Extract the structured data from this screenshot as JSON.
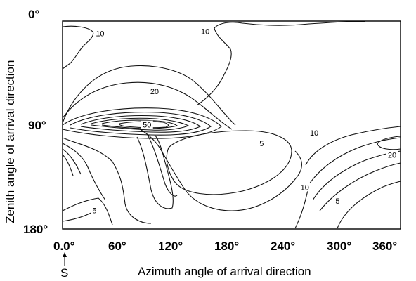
{
  "chart_data": {
    "type": "contour",
    "xlabel": "Azimuth angle of arrival direction",
    "ylabel": "Zenith angle of arrival direction",
    "xlim": [
      0,
      360
    ],
    "ylim": [
      0,
      180
    ],
    "x_ticks": [
      "0.0°",
      "60°",
      "120°",
      "180°",
      "240°",
      "300°",
      "360°"
    ],
    "y_ticks": [
      "0°",
      "90°",
      "180°"
    ],
    "x_marker": {
      "x": 0,
      "label": "S"
    },
    "contour_labels": [
      {
        "text": "10",
        "x": 40,
        "y": 12
      },
      {
        "text": "10",
        "x": 152,
        "y": 10
      },
      {
        "text": "20",
        "x": 98,
        "y": 62
      },
      {
        "text": "50",
        "x": 90,
        "y": 91
      },
      {
        "text": "5",
        "x": 212,
        "y": 107
      },
      {
        "text": "10",
        "x": 268,
        "y": 98
      },
      {
        "text": "20",
        "x": 351,
        "y": 117
      },
      {
        "text": "10",
        "x": 258,
        "y": 145
      },
      {
        "text": "5",
        "x": 293,
        "y": 157
      },
      {
        "text": "5",
        "x": 34,
        "y": 165
      }
    ]
  }
}
